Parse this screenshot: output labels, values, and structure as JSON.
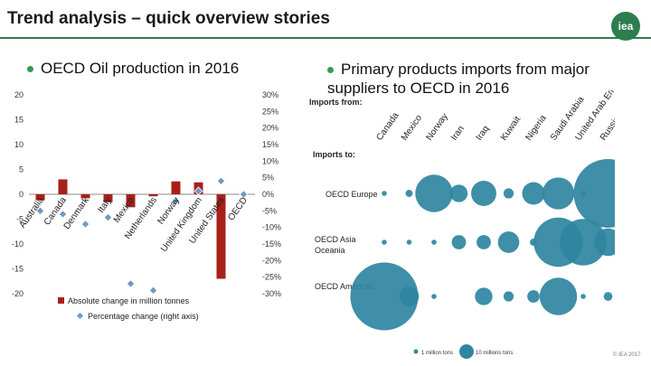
{
  "page": {
    "title": "Trend analysis – quick overview stories",
    "logo": "iea",
    "copyright": "© IEA 2017"
  },
  "chart_data": [
    {
      "type": "bar",
      "title": "OECD Oil production in 2016",
      "categories": [
        "Australia",
        "Canada",
        "Denmark",
        "Italy",
        "Mexico",
        "Netherlands",
        "Norway",
        "United Kingdom",
        "United States",
        "OECD"
      ],
      "series": [
        {
          "name": "Absolute change in million tonnes",
          "values": [
            -1.2,
            3.0,
            -0.8,
            -1.6,
            -2.6,
            -0.4,
            2.6,
            2.4,
            -17.0,
            null
          ]
        },
        {
          "name": "Percentage change (right axis)",
          "values": [
            -5,
            -6,
            -9,
            -7,
            -27,
            -29,
            -2,
            1,
            4,
            0
          ]
        }
      ],
      "ylim": [
        -20,
        20
      ],
      "y_ticks": [
        20,
        15,
        10,
        5,
        0,
        -5,
        -10,
        -15,
        -20
      ],
      "y2lim": [
        -30,
        30
      ],
      "y2_ticks": [
        "30%",
        "25%",
        "20%",
        "15%",
        "10%",
        "5%",
        "0%",
        "-5%",
        "-10%",
        "-15%",
        "-20%",
        "-25%",
        "-30%"
      ],
      "colors": {
        "bar": "#a8201a",
        "marker": "#6b9bc7"
      },
      "legend_position": "bottom"
    },
    {
      "type": "bubble",
      "title": "Primary products imports from major suppliers to OECD in 2016",
      "x_label": "Imports from:",
      "y_label": "Imports to:",
      "x_categories": [
        "Canada",
        "Mexico",
        "Norway",
        "Iran",
        "Iraq",
        "Kuwait",
        "Nigeria",
        "Saudi Arabia",
        "United Arab Emirates",
        "Russian Federation"
      ],
      "y_categories": [
        "OECD Europe",
        "OECD Asia Oceania",
        "OECD Americas"
      ],
      "values_million_tonnes": [
        [
          1,
          2,
          55,
          12,
          25,
          4,
          20,
          40,
          1,
          185
        ],
        [
          1,
          1,
          1,
          8,
          8,
          18,
          2,
          95,
          85,
          30
        ],
        [
          180,
          15,
          1,
          0,
          12,
          4,
          6,
          55,
          1,
          3
        ]
      ],
      "legend": [
        "1 million tons",
        "10 millions tons"
      ],
      "color": "#2e86a0"
    }
  ]
}
